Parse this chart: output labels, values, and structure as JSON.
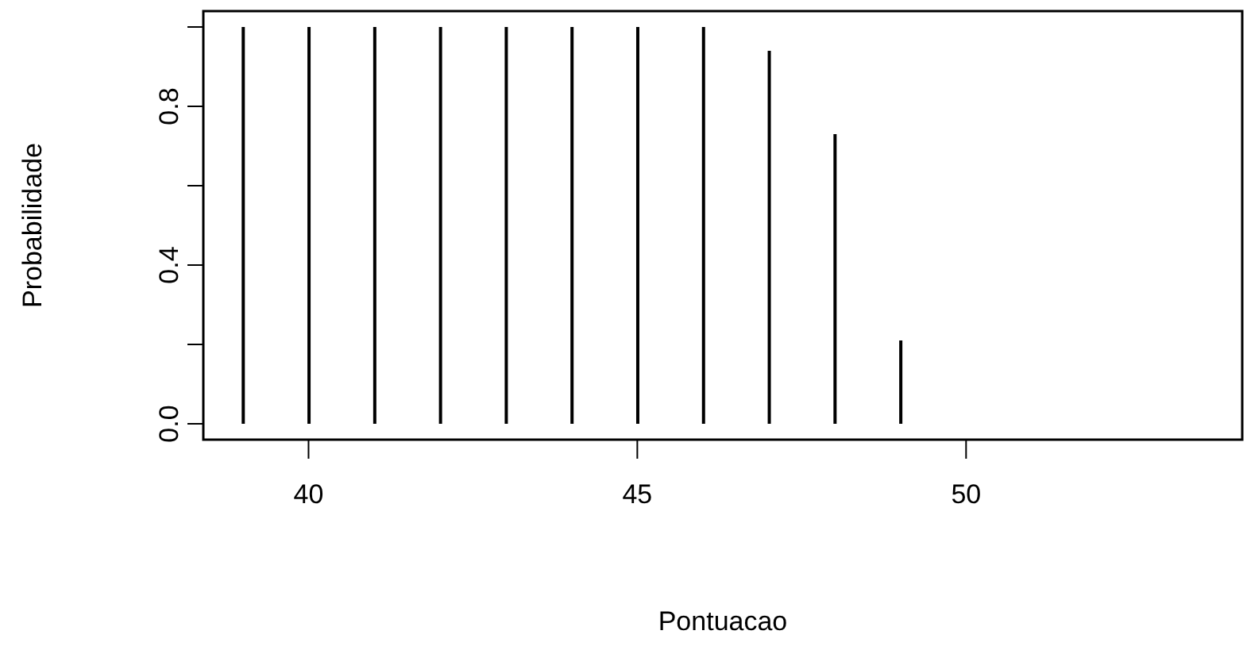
{
  "chart_data": {
    "type": "bar",
    "xlabel": "Pontuacao",
    "ylabel": "Probabilidade",
    "x": [
      39,
      40,
      41,
      42,
      43,
      44,
      45,
      46,
      47,
      48,
      49
    ],
    "series": [
      {
        "color": "#000000",
        "values": [
          1,
          1,
          1,
          1,
          1,
          1,
          1,
          1,
          0.94,
          0.73,
          0.21
        ]
      }
    ],
    "xlim": [
      38.4,
      54.2
    ],
    "xticks": [
      40,
      45,
      50
    ],
    "ylim": [
      -0.04,
      1.04
    ],
    "yticks": [
      {
        "value": 0,
        "label": "0.0"
      },
      {
        "value": 0.2,
        "label": null
      },
      {
        "value": 0.4,
        "label": "0.4"
      },
      {
        "value": 0.6,
        "label": null
      },
      {
        "value": 0.8,
        "label": "0.8"
      },
      {
        "value": 1,
        "label": null
      }
    ],
    "grid": false,
    "legend": false
  }
}
